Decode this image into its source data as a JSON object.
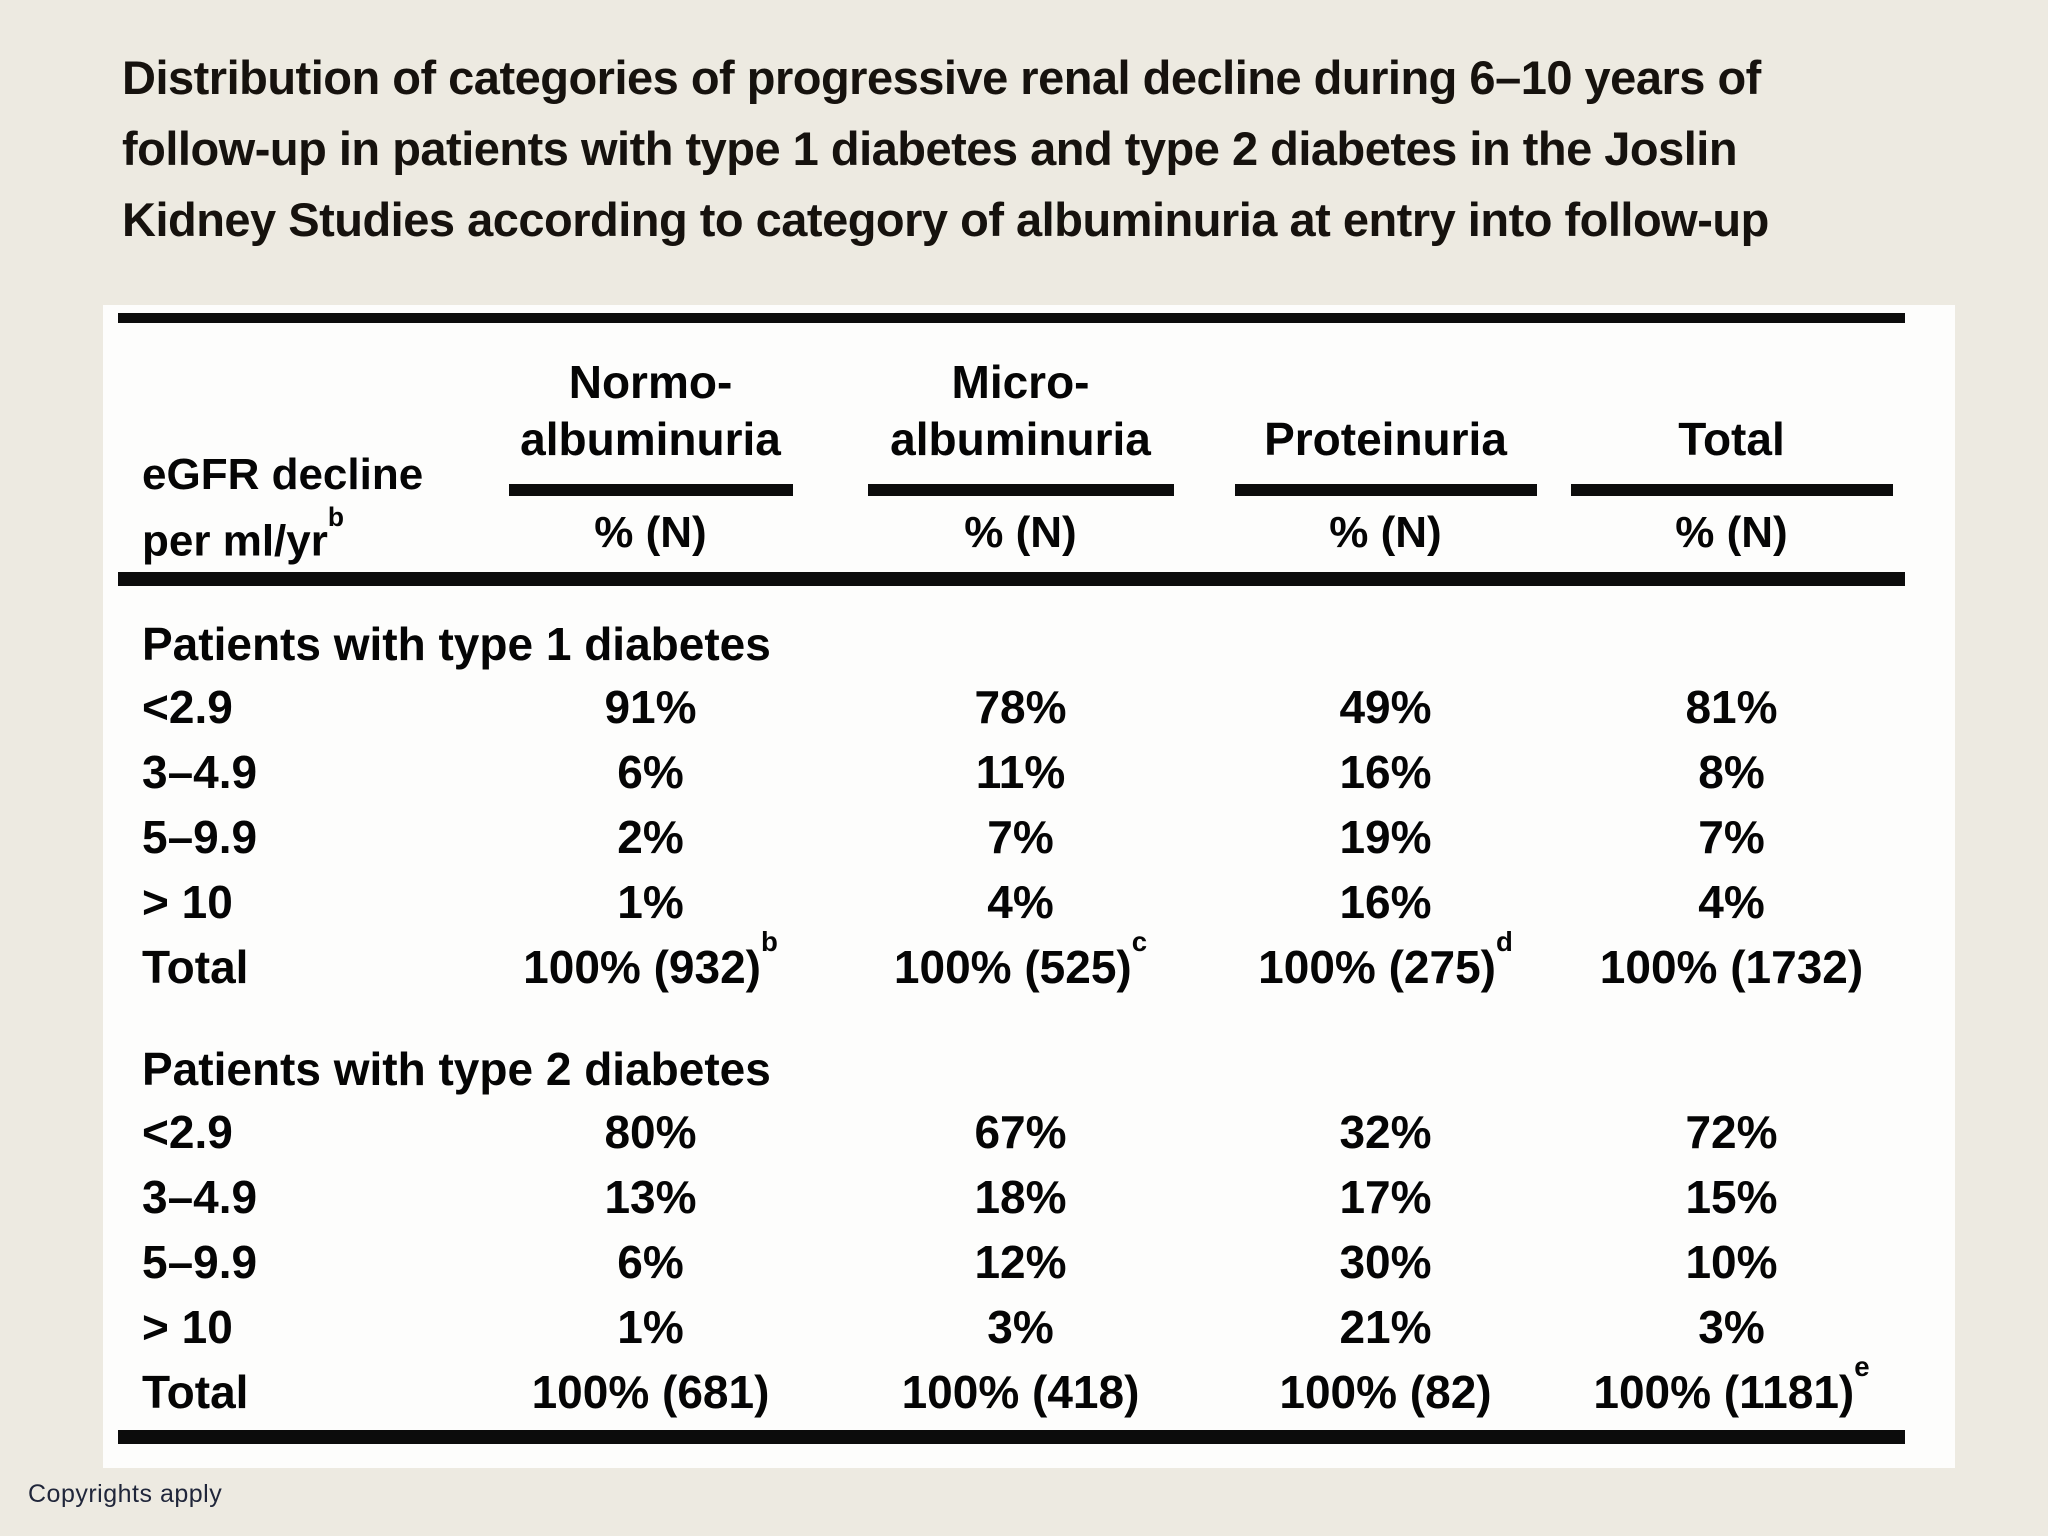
{
  "page": {
    "background": "#edeae1",
    "panel_background": "#fdfdfc",
    "rule_color": "#0c0c0c",
    "text_color": "#050505",
    "copyright_color": "#20263a",
    "copyright": "Copyrights apply"
  },
  "title": {
    "lines": [
      "Distribution of categories of progressive renal decline during 6–10 years of",
      "follow-up in patients with type 1 diabetes and type 2 diabetes in the Joslin",
      "Kidney Studies according to category of albuminuria at entry into follow-up"
    ]
  },
  "table": {
    "row_header": {
      "line1": "eGFR decline",
      "line2": "per ml/yr",
      "line2_sup": "b"
    },
    "columns": [
      {
        "title_line1": "Normo-",
        "title_line2": "albuminuria",
        "subtitle": "% (N)"
      },
      {
        "title_line1": "Micro-",
        "title_line2": "albuminuria",
        "subtitle": "% (N)"
      },
      {
        "title_line1": "",
        "title_line2": "Proteinuria",
        "subtitle": "% (N)"
      },
      {
        "title_line1": "",
        "title_line2": "Total",
        "subtitle": "% (N)"
      }
    ],
    "sections": [
      {
        "label": "Patients with type 1 diabetes",
        "rows": [
          {
            "label": "<2.9",
            "values": [
              {
                "v": "91%"
              },
              {
                "v": "78%"
              },
              {
                "v": "49%"
              },
              {
                "v": "81%"
              }
            ]
          },
          {
            "label": "3–4.9",
            "values": [
              {
                "v": "6%"
              },
              {
                "v": "11%"
              },
              {
                "v": "16%"
              },
              {
                "v": "8%"
              }
            ]
          },
          {
            "label": "5–9.9",
            "values": [
              {
                "v": "2%"
              },
              {
                "v": "7%"
              },
              {
                "v": "19%"
              },
              {
                "v": "7%"
              }
            ]
          },
          {
            "label": "> 10",
            "values": [
              {
                "v": "1%"
              },
              {
                "v": "4%"
              },
              {
                "v": "16%"
              },
              {
                "v": "4%"
              }
            ]
          },
          {
            "label": "Total",
            "values": [
              {
                "v": "100% (932)",
                "sup": "b"
              },
              {
                "v": "100% (525)",
                "sup": "c"
              },
              {
                "v": "100% (275)",
                "sup": "d"
              },
              {
                "v": "100% (1732)"
              }
            ]
          }
        ]
      },
      {
        "label": "Patients with type 2 diabetes",
        "rows": [
          {
            "label": "<2.9",
            "values": [
              {
                "v": "80%"
              },
              {
                "v": "67%"
              },
              {
                "v": "32%"
              },
              {
                "v": "72%"
              }
            ]
          },
          {
            "label": "3–4.9",
            "values": [
              {
                "v": "13%"
              },
              {
                "v": "18%"
              },
              {
                "v": "17%"
              },
              {
                "v": "15%"
              }
            ]
          },
          {
            "label": "5–9.9",
            "values": [
              {
                "v": "6%"
              },
              {
                "v": "12%"
              },
              {
                "v": "30%"
              },
              {
                "v": "10%"
              }
            ]
          },
          {
            "label": "> 10",
            "values": [
              {
                "v": "1%"
              },
              {
                "v": "3%"
              },
              {
                "v": "21%"
              },
              {
                "v": "3%"
              }
            ]
          },
          {
            "label": "Total",
            "values": [
              {
                "v": "100% (681)"
              },
              {
                "v": "100% (418)"
              },
              {
                "v": "100% (82)"
              },
              {
                "v": "100% (1181)",
                "sup": "e"
              }
            ]
          }
        ]
      }
    ]
  }
}
